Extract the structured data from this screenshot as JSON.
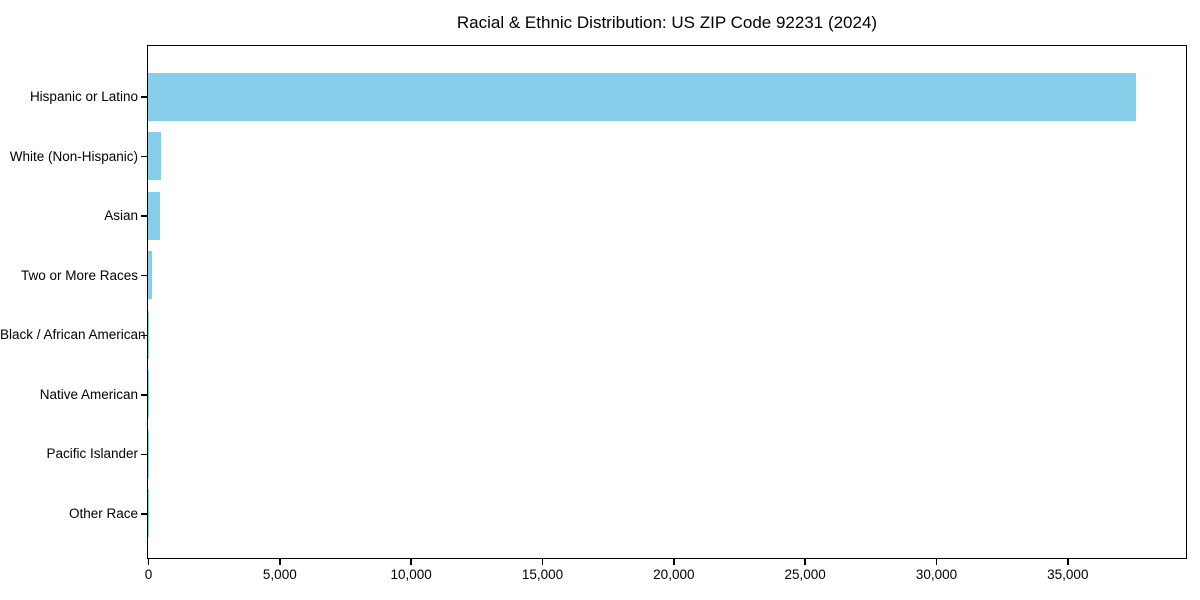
{
  "chart_data": {
    "type": "bar",
    "orientation": "horizontal",
    "title": "Racial & Ethnic Distribution: US ZIP Code 92231 (2024)",
    "categories": [
      "Hispanic or Latino",
      "White (Non-Hispanic)",
      "Asian",
      "Two or More Races",
      "Black / African American",
      "Native American",
      "Pacific Islander",
      "Other Race"
    ],
    "values": [
      37600,
      480,
      440,
      155,
      45,
      12,
      4,
      20
    ],
    "xlabel": "",
    "ylabel": "",
    "xlim": [
      0,
      39480
    ],
    "x_tick_values": [
      0,
      5000,
      10000,
      15000,
      20000,
      25000,
      30000,
      35000
    ],
    "x_tick_labels": [
      "0",
      "5,000",
      "10,000",
      "15,000",
      "20,000",
      "25,000",
      "30,000",
      "35,000"
    ],
    "bar_color": "#87CEEB",
    "background_color": "#FFFFFF",
    "text_color": "#000000",
    "grid": false,
    "legend": false
  }
}
